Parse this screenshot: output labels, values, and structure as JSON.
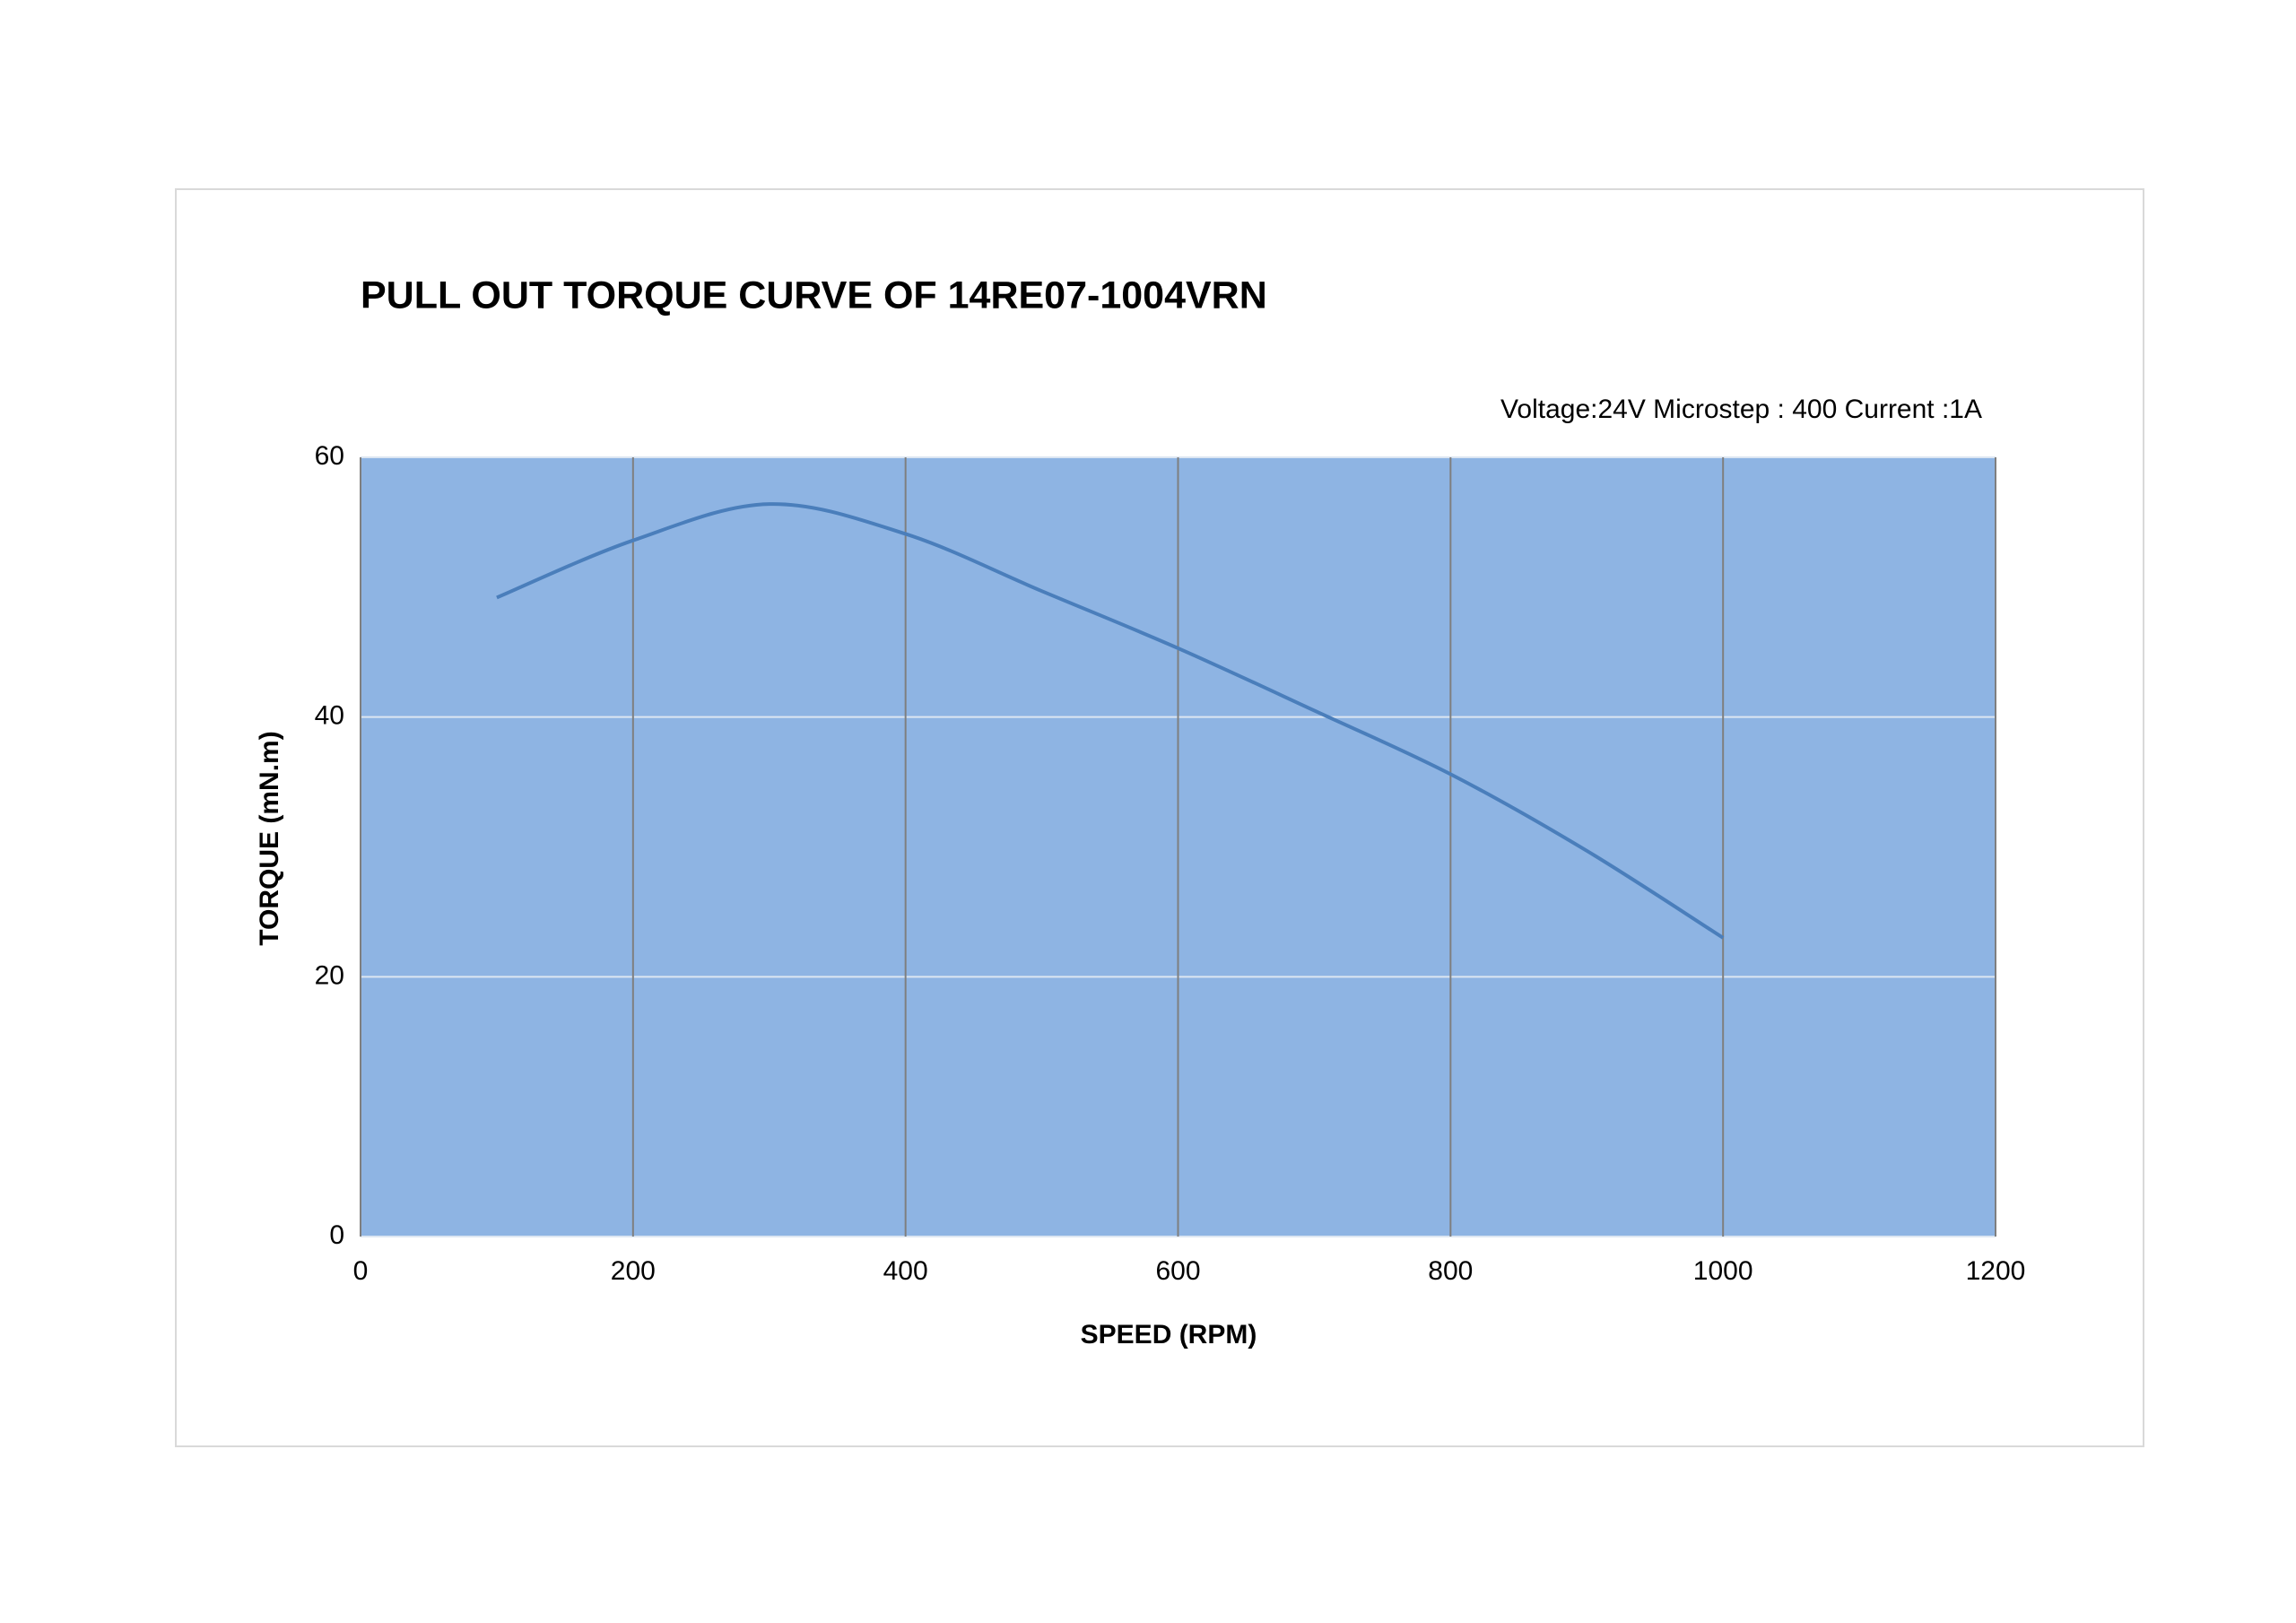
{
  "chart_data": {
    "type": "line",
    "title": "PULL OUT TORQUE CURVE OF 14RE07-1004VRN",
    "subtitle": "Voltage:24V  Microstep : 400  Current :1A",
    "x_label": "SPEED (RPM)",
    "y_label": "TORQUE (mN.m)",
    "x": [
      100,
      200,
      300,
      400,
      500,
      600,
      700,
      800,
      900,
      1000
    ],
    "values": [
      49.2,
      53.6,
      56.4,
      54.1,
      49.7,
      45.3,
      40.5,
      35.6,
      29.7,
      23.0
    ],
    "color": "#4a7ebb",
    "plot_background": "#8eb4e3",
    "xlim": [
      0,
      1200
    ],
    "xticks": [
      0,
      200,
      400,
      600,
      800,
      1000,
      1200
    ],
    "ylim": [
      0,
      60
    ],
    "yticks": [
      0,
      20,
      40,
      60
    ],
    "grid": true
  }
}
